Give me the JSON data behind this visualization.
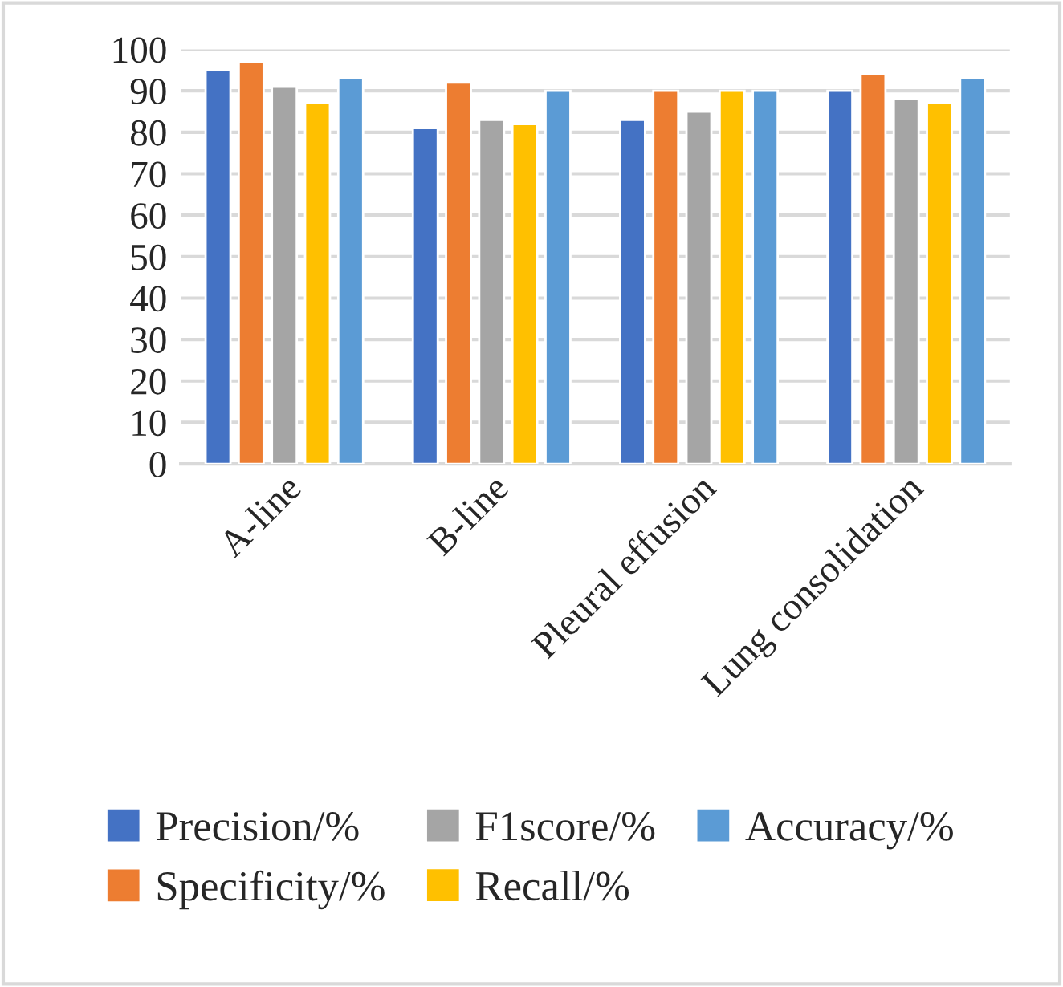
{
  "chart_data": {
    "type": "bar",
    "categories": [
      "A-line",
      "B-line",
      "Pleural effusion",
      "Lung consolidation"
    ],
    "series": [
      {
        "name": "Precision/%",
        "color": "#4472c4",
        "values": [
          95,
          81,
          83,
          90
        ]
      },
      {
        "name": "Specificity/%",
        "color": "#ed7d31",
        "values": [
          97,
          92,
          90,
          94
        ]
      },
      {
        "name": "F1score/%",
        "color": "#a5a5a5",
        "values": [
          91,
          83,
          85,
          88
        ]
      },
      {
        "name": "Recall/%",
        "color": "#ffc000",
        "values": [
          87,
          82,
          90,
          87
        ]
      },
      {
        "name": "Accuracy/%",
        "color": "#5b9bd5",
        "values": [
          93,
          90,
          90,
          93
        ]
      }
    ],
    "ylim": [
      0,
      100
    ],
    "yticks": [
      0,
      10,
      20,
      30,
      40,
      50,
      60,
      70,
      80,
      90,
      100
    ],
    "grid": "y",
    "legend": "bottom"
  }
}
